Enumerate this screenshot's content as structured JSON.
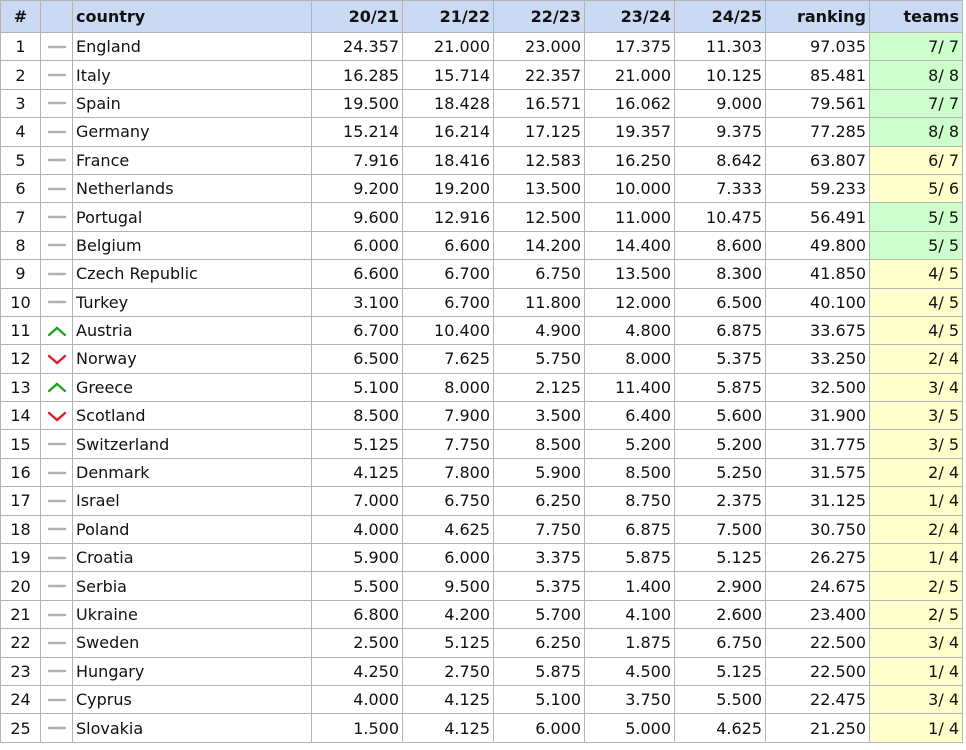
{
  "table": {
    "header": [
      "#",
      "country",
      "20/21",
      "21/22",
      "22/23",
      "23/24",
      "24/25",
      "ranking",
      "teams"
    ],
    "rows": [
      {
        "cells": [
          "1",
          "England",
          "24.357",
          "21.000",
          "23.000",
          "17.375",
          "11.303",
          "97.035",
          "7/ 7"
        ],
        "trend": "same",
        "teams_bg": "#ccffcc"
      },
      {
        "cells": [
          "2",
          "Italy",
          "16.285",
          "15.714",
          "22.357",
          "21.000",
          "10.125",
          "85.481",
          "8/ 8"
        ],
        "trend": "same",
        "teams_bg": "#ccffcc"
      },
      {
        "cells": [
          "3",
          "Spain",
          "19.500",
          "18.428",
          "16.571",
          "16.062",
          "9.000",
          "79.561",
          "7/ 7"
        ],
        "trend": "same",
        "teams_bg": "#ccffcc"
      },
      {
        "cells": [
          "4",
          "Germany",
          "15.214",
          "16.214",
          "17.125",
          "19.357",
          "9.375",
          "77.285",
          "8/ 8"
        ],
        "trend": "same",
        "teams_bg": "#ccffcc"
      },
      {
        "cells": [
          "5",
          "France",
          "7.916",
          "18.416",
          "12.583",
          "16.250",
          "8.642",
          "63.807",
          "6/ 7"
        ],
        "trend": "same",
        "teams_bg": "#ffffcc"
      },
      {
        "cells": [
          "6",
          "Netherlands",
          "9.200",
          "19.200",
          "13.500",
          "10.000",
          "7.333",
          "59.233",
          "5/ 6"
        ],
        "trend": "same",
        "teams_bg": "#ffffcc"
      },
      {
        "cells": [
          "7",
          "Portugal",
          "9.600",
          "12.916",
          "12.500",
          "11.000",
          "10.475",
          "56.491",
          "5/ 5"
        ],
        "trend": "same",
        "teams_bg": "#ccffcc"
      },
      {
        "cells": [
          "8",
          "Belgium",
          "6.000",
          "6.600",
          "14.200",
          "14.400",
          "8.600",
          "49.800",
          "5/ 5"
        ],
        "trend": "same",
        "teams_bg": "#ccffcc"
      },
      {
        "cells": [
          "9",
          "Czech Republic",
          "6.600",
          "6.700",
          "6.750",
          "13.500",
          "8.300",
          "41.850",
          "4/ 5"
        ],
        "trend": "same",
        "teams_bg": "#ffffcc"
      },
      {
        "cells": [
          "10",
          "Turkey",
          "3.100",
          "6.700",
          "11.800",
          "12.000",
          "6.500",
          "40.100",
          "4/ 5"
        ],
        "trend": "same",
        "teams_bg": "#ffffcc"
      },
      {
        "cells": [
          "11",
          "Austria",
          "6.700",
          "10.400",
          "4.900",
          "4.800",
          "6.875",
          "33.675",
          "4/ 5"
        ],
        "trend": "up",
        "teams_bg": "#ffffcc"
      },
      {
        "cells": [
          "12",
          "Norway",
          "6.500",
          "7.625",
          "5.750",
          "8.000",
          "5.375",
          "33.250",
          "2/ 4"
        ],
        "trend": "down",
        "teams_bg": "#ffffcc"
      },
      {
        "cells": [
          "13",
          "Greece",
          "5.100",
          "8.000",
          "2.125",
          "11.400",
          "5.875",
          "32.500",
          "3/ 4"
        ],
        "trend": "up",
        "teams_bg": "#ffffcc"
      },
      {
        "cells": [
          "14",
          "Scotland",
          "8.500",
          "7.900",
          "3.500",
          "6.400",
          "5.600",
          "31.900",
          "3/ 5"
        ],
        "trend": "down",
        "teams_bg": "#ffffcc"
      },
      {
        "cells": [
          "15",
          "Switzerland",
          "5.125",
          "7.750",
          "8.500",
          "5.200",
          "5.200",
          "31.775",
          "3/ 5"
        ],
        "trend": "same",
        "teams_bg": "#ffffcc"
      },
      {
        "cells": [
          "16",
          "Denmark",
          "4.125",
          "7.800",
          "5.900",
          "8.500",
          "5.250",
          "31.575",
          "2/ 4"
        ],
        "trend": "same",
        "teams_bg": "#ffffcc"
      },
      {
        "cells": [
          "17",
          "Israel",
          "7.000",
          "6.750",
          "6.250",
          "8.750",
          "2.375",
          "31.125",
          "1/ 4"
        ],
        "trend": "same",
        "teams_bg": "#ffffcc"
      },
      {
        "cells": [
          "18",
          "Poland",
          "4.000",
          "4.625",
          "7.750",
          "6.875",
          "7.500",
          "30.750",
          "2/ 4"
        ],
        "trend": "same",
        "teams_bg": "#ffffcc"
      },
      {
        "cells": [
          "19",
          "Croatia",
          "5.900",
          "6.000",
          "3.375",
          "5.875",
          "5.125",
          "26.275",
          "1/ 4"
        ],
        "trend": "same",
        "teams_bg": "#ffffcc"
      },
      {
        "cells": [
          "20",
          "Serbia",
          "5.500",
          "9.500",
          "5.375",
          "1.400",
          "2.900",
          "24.675",
          "2/ 5"
        ],
        "trend": "same",
        "teams_bg": "#ffffcc"
      },
      {
        "cells": [
          "21",
          "Ukraine",
          "6.800",
          "4.200",
          "5.700",
          "4.100",
          "2.600",
          "23.400",
          "2/ 5"
        ],
        "trend": "same",
        "teams_bg": "#ffffcc"
      },
      {
        "cells": [
          "22",
          "Sweden",
          "2.500",
          "5.125",
          "6.250",
          "1.875",
          "6.750",
          "22.500",
          "3/ 4"
        ],
        "trend": "same",
        "teams_bg": "#ffffcc"
      },
      {
        "cells": [
          "23",
          "Hungary",
          "4.250",
          "2.750",
          "5.875",
          "4.500",
          "5.125",
          "22.500",
          "1/ 4"
        ],
        "trend": "same",
        "teams_bg": "#ffffcc"
      },
      {
        "cells": [
          "24",
          "Cyprus",
          "4.000",
          "4.125",
          "5.100",
          "3.750",
          "5.500",
          "22.475",
          "3/ 4"
        ],
        "trend": "same",
        "teams_bg": "#ffffcc"
      },
      {
        "cells": [
          "25",
          "Slovakia",
          "1.500",
          "4.125",
          "6.000",
          "5.000",
          "4.625",
          "21.250",
          "1/ 4"
        ],
        "trend": "same",
        "teams_bg": "#ffffcc"
      }
    ]
  }
}
